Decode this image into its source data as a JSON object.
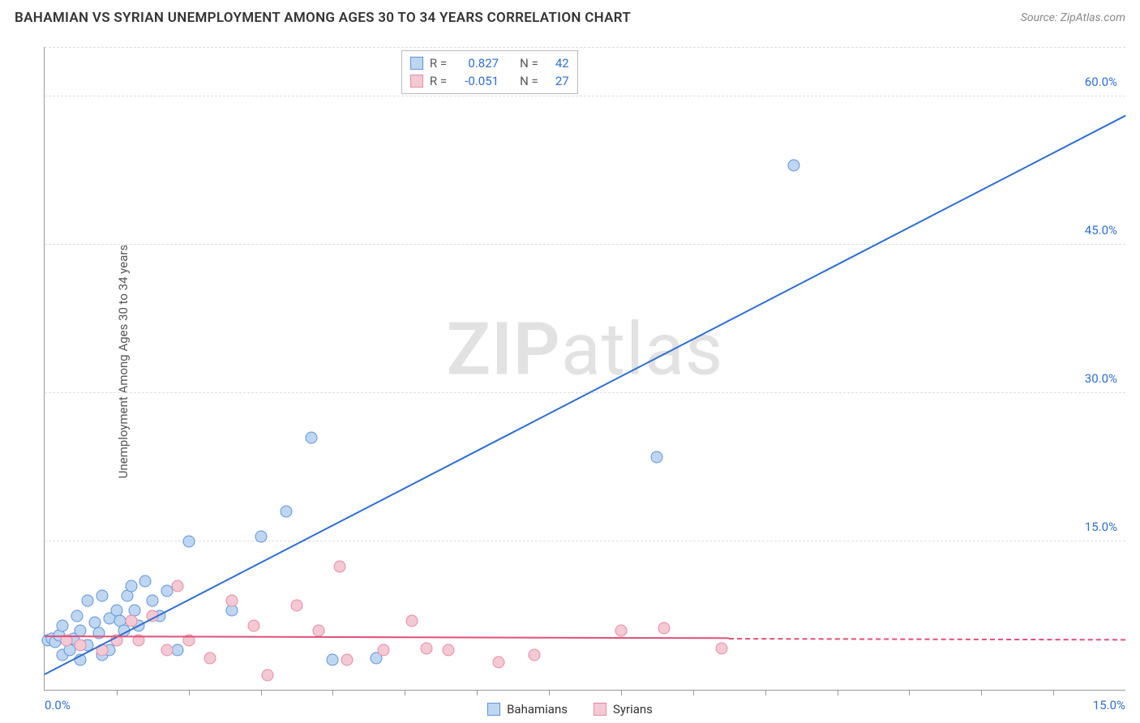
{
  "title": "BAHAMIAN VS SYRIAN UNEMPLOYMENT AMONG AGES 30 TO 34 YEARS CORRELATION CHART",
  "source": "Source: ZipAtlas.com",
  "ylabel": "Unemployment Among Ages 30 to 34 years",
  "watermark_bold": "ZIP",
  "watermark_light": "atlas",
  "chart": {
    "type": "scatter",
    "xlim": [
      0,
      15
    ],
    "ylim": [
      0,
      65
    ],
    "x_tick_label_left": "0.0%",
    "x_tick_label_right": "15.0%",
    "x_tick_label_color": "#2f6fd0",
    "x_ticks_minor": [
      1,
      2,
      3,
      4,
      5,
      6,
      7,
      8,
      9,
      10,
      11,
      12,
      13,
      14
    ],
    "y_ticks": [
      {
        "v": 15,
        "label": "15.0%",
        "color": "#2f6fd0"
      },
      {
        "v": 30,
        "label": "30.0%",
        "color": "#2f6fd0"
      },
      {
        "v": 45,
        "label": "45.0%",
        "color": "#2f6fd0"
      },
      {
        "v": 60,
        "label": "60.0%",
        "color": "#2f6fd0"
      }
    ],
    "grid_color": "#dddddd",
    "background": "#ffffff",
    "series": [
      {
        "name": "Bahamians",
        "fill": "#bfd6f2",
        "stroke": "#5f93d6",
        "line_color": "#2f6fd0",
        "r_value": "0.827",
        "n_value": "42",
        "trend": {
          "x1": 0.0,
          "y1": 1.5,
          "x2": 15.0,
          "y2": 58.0,
          "solid_until_x": 15.0
        },
        "points": [
          [
            0.05,
            5.0
          ],
          [
            0.1,
            5.2
          ],
          [
            0.15,
            4.8
          ],
          [
            0.2,
            5.5
          ],
          [
            0.25,
            6.5
          ],
          [
            0.25,
            3.5
          ],
          [
            0.3,
            5.0
          ],
          [
            0.35,
            4.0
          ],
          [
            0.4,
            5.2
          ],
          [
            0.45,
            7.5
          ],
          [
            0.5,
            6.0
          ],
          [
            0.5,
            3.0
          ],
          [
            0.6,
            9.0
          ],
          [
            0.6,
            4.5
          ],
          [
            0.7,
            6.8
          ],
          [
            0.75,
            5.7
          ],
          [
            0.8,
            9.5
          ],
          [
            0.8,
            3.5
          ],
          [
            0.9,
            7.2
          ],
          [
            0.9,
            4.0
          ],
          [
            1.0,
            8.0
          ],
          [
            1.0,
            5.0
          ],
          [
            1.05,
            7.0
          ],
          [
            1.1,
            6.0
          ],
          [
            1.15,
            9.5
          ],
          [
            1.2,
            10.5
          ],
          [
            1.25,
            8.0
          ],
          [
            1.3,
            6.5
          ],
          [
            1.4,
            11.0
          ],
          [
            1.5,
            9.0
          ],
          [
            1.6,
            7.5
          ],
          [
            1.7,
            10.0
          ],
          [
            1.85,
            4.0
          ],
          [
            2.0,
            15.0
          ],
          [
            2.6,
            8.0
          ],
          [
            3.0,
            15.5
          ],
          [
            3.35,
            18.0
          ],
          [
            3.7,
            25.5
          ],
          [
            4.0,
            3.0
          ],
          [
            4.6,
            3.2
          ],
          [
            8.5,
            23.5
          ],
          [
            10.4,
            53.0
          ]
        ]
      },
      {
        "name": "Syrians",
        "fill": "#f3c9d4",
        "stroke": "#e68aa4",
        "line_color": "#e15079",
        "r_value": "-0.051",
        "n_value": "27",
        "trend": {
          "x1": 0.0,
          "y1": 5.3,
          "x2": 15.0,
          "y2": 5.0,
          "solid_until_x": 9.5
        },
        "points": [
          [
            0.3,
            5.0
          ],
          [
            0.5,
            4.5
          ],
          [
            0.8,
            4.0
          ],
          [
            1.0,
            5.0
          ],
          [
            1.2,
            7.0
          ],
          [
            1.3,
            5.0
          ],
          [
            1.5,
            7.5
          ],
          [
            1.7,
            4.0
          ],
          [
            1.85,
            10.5
          ],
          [
            2.0,
            5.0
          ],
          [
            2.3,
            3.2
          ],
          [
            2.6,
            9.0
          ],
          [
            2.9,
            6.5
          ],
          [
            3.1,
            1.5
          ],
          [
            3.5,
            8.5
          ],
          [
            3.8,
            6.0
          ],
          [
            4.1,
            12.5
          ],
          [
            4.2,
            3.0
          ],
          [
            4.7,
            4.0
          ],
          [
            5.1,
            7.0
          ],
          [
            5.3,
            4.2
          ],
          [
            5.6,
            4.0
          ],
          [
            6.3,
            2.8
          ],
          [
            6.8,
            3.5
          ],
          [
            8.0,
            6.0
          ],
          [
            8.6,
            6.2
          ],
          [
            9.4,
            4.2
          ]
        ]
      }
    ],
    "stats_box": {
      "r_label": "R =",
      "n_label": "N =",
      "value_color": "#2f6fd0"
    },
    "legend": {
      "items": [
        "Bahamians",
        "Syrians"
      ]
    }
  }
}
